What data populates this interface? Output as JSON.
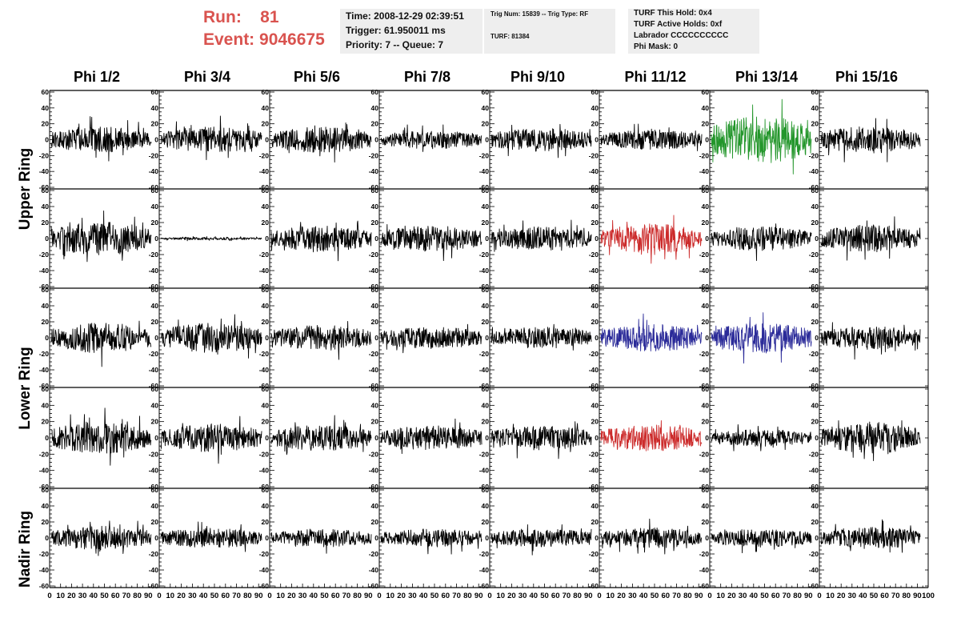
{
  "header": {
    "run_label": "Run:    81",
    "event_label": "Event: 9046675"
  },
  "info_box_1": {
    "time": "Time: 2008-12-29 02:39:51",
    "trigger": "Trigger: 61.950011 ms",
    "priority": "Priority: 7 -- Queue: 7"
  },
  "info_box_2": {
    "trig": "Trig Num: 15839 -- Trig Type: RF",
    "turf": "TURF: 81384"
  },
  "info_box_3": {
    "hold": "TURF This Hold: 0x4",
    "active": "TURF Active Holds: 0xf",
    "labrador": "Labrador CCCCCCCCCC",
    "mask": "Phi Mask: 0"
  },
  "columns": [
    "Phi 1/2",
    "Phi 3/4",
    "Phi 5/6",
    "Phi 7/8",
    "Phi 9/10",
    "Phi 11/12",
    "Phi 13/14",
    "Phi 15/16"
  ],
  "ring_labels": [
    "Upper Ring",
    "Lower Ring",
    "Nadir Ring"
  ],
  "chart_data": {
    "type": "line",
    "grid": false,
    "xlim": [
      0,
      100
    ],
    "ylim": [
      -60,
      60
    ],
    "y_ticks": [
      "60",
      "40",
      "20",
      "0",
      "-20",
      "-40",
      "-60"
    ],
    "x_tick_labels": [
      "0",
      "10",
      "20",
      "30",
      "40",
      "50",
      "60",
      "70",
      "80",
      "90",
      "100"
    ],
    "rows": 5,
    "cols": 8,
    "x_samples": 260,
    "panels": [
      {
        "row": 0,
        "col": 0,
        "color": "#000000",
        "amplitude": 14
      },
      {
        "row": 0,
        "col": 1,
        "color": "#000000",
        "amplitude": 14
      },
      {
        "row": 0,
        "col": 2,
        "color": "#000000",
        "amplitude": 14
      },
      {
        "row": 0,
        "col": 3,
        "color": "#000000",
        "amplitude": 10
      },
      {
        "row": 0,
        "col": 4,
        "color": "#000000",
        "amplitude": 13
      },
      {
        "row": 0,
        "col": 5,
        "color": "#000000",
        "amplitude": 11
      },
      {
        "row": 0,
        "col": 6,
        "color": "#23962b",
        "amplitude": 26
      },
      {
        "row": 0,
        "col": 7,
        "color": "#000000",
        "amplitude": 15
      },
      {
        "row": 1,
        "col": 0,
        "color": "#000000",
        "amplitude": 18
      },
      {
        "row": 1,
        "col": 1,
        "color": "#000000",
        "amplitude": 1.5
      },
      {
        "row": 1,
        "col": 2,
        "color": "#000000",
        "amplitude": 14
      },
      {
        "row": 1,
        "col": 3,
        "color": "#000000",
        "amplitude": 14
      },
      {
        "row": 1,
        "col": 4,
        "color": "#000000",
        "amplitude": 13
      },
      {
        "row": 1,
        "col": 5,
        "color": "#cc2b2b",
        "amplitude": 16
      },
      {
        "row": 1,
        "col": 6,
        "color": "#000000",
        "amplitude": 13
      },
      {
        "row": 1,
        "col": 7,
        "color": "#000000",
        "amplitude": 15
      },
      {
        "row": 2,
        "col": 0,
        "color": "#000000",
        "amplitude": 17
      },
      {
        "row": 2,
        "col": 1,
        "color": "#000000",
        "amplitude": 16
      },
      {
        "row": 2,
        "col": 2,
        "color": "#000000",
        "amplitude": 14
      },
      {
        "row": 2,
        "col": 3,
        "color": "#000000",
        "amplitude": 12
      },
      {
        "row": 2,
        "col": 4,
        "color": "#000000",
        "amplitude": 12
      },
      {
        "row": 2,
        "col": 5,
        "color": "#2b2b99",
        "amplitude": 15
      },
      {
        "row": 2,
        "col": 6,
        "color": "#2b2b99",
        "amplitude": 16
      },
      {
        "row": 2,
        "col": 7,
        "color": "#000000",
        "amplitude": 13
      },
      {
        "row": 3,
        "col": 0,
        "color": "#000000",
        "amplitude": 17
      },
      {
        "row": 3,
        "col": 1,
        "color": "#000000",
        "amplitude": 15
      },
      {
        "row": 3,
        "col": 2,
        "color": "#000000",
        "amplitude": 14
      },
      {
        "row": 3,
        "col": 3,
        "color": "#000000",
        "amplitude": 13
      },
      {
        "row": 3,
        "col": 4,
        "color": "#000000",
        "amplitude": 13
      },
      {
        "row": 3,
        "col": 5,
        "color": "#cc2b2b",
        "amplitude": 14
      },
      {
        "row": 3,
        "col": 6,
        "color": "#000000",
        "amplitude": 9
      },
      {
        "row": 3,
        "col": 7,
        "color": "#000000",
        "amplitude": 17
      },
      {
        "row": 4,
        "col": 0,
        "color": "#000000",
        "amplitude": 13
      },
      {
        "row": 4,
        "col": 1,
        "color": "#000000",
        "amplitude": 11
      },
      {
        "row": 4,
        "col": 2,
        "color": "#000000",
        "amplitude": 10
      },
      {
        "row": 4,
        "col": 3,
        "color": "#000000",
        "amplitude": 10
      },
      {
        "row": 4,
        "col": 4,
        "color": "#000000",
        "amplitude": 10
      },
      {
        "row": 4,
        "col": 5,
        "color": "#000000",
        "amplitude": 11
      },
      {
        "row": 4,
        "col": 6,
        "color": "#000000",
        "amplitude": 10
      },
      {
        "row": 4,
        "col": 7,
        "color": "#000000",
        "amplitude": 12
      }
    ]
  }
}
